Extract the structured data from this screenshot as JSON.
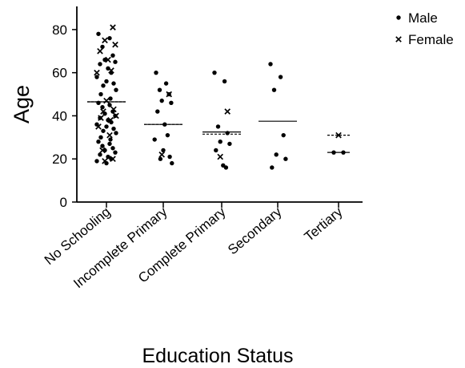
{
  "chart_data": {
    "type": "scatter",
    "title": "",
    "xlabel": "Education Status",
    "ylabel": "Age",
    "ylim": [
      0,
      90
    ],
    "yticks": [
      0,
      20,
      40,
      60,
      80
    ],
    "categories": [
      "No Schooling",
      "Incomplete Primary",
      "Complete Primary",
      "Secondary",
      "Tertiary"
    ],
    "legend": {
      "position": "top-right",
      "entries": [
        {
          "label": "Male",
          "marker": "dot"
        },
        {
          "label": "Female",
          "marker": "cross"
        }
      ]
    },
    "series": [
      {
        "name": "Male",
        "marker": "dot",
        "points": [
          {
            "x": "No Schooling",
            "y": 78
          },
          {
            "x": "No Schooling",
            "y": 76
          },
          {
            "x": "No Schooling",
            "y": 72
          },
          {
            "x": "No Schooling",
            "y": 68
          },
          {
            "x": "No Schooling",
            "y": 66
          },
          {
            "x": "No Schooling",
            "y": 65
          },
          {
            "x": "No Schooling",
            "y": 64
          },
          {
            "x": "No Schooling",
            "y": 62
          },
          {
            "x": "No Schooling",
            "y": 60
          },
          {
            "x": "No Schooling",
            "y": 58
          },
          {
            "x": "No Schooling",
            "y": 56
          },
          {
            "x": "No Schooling",
            "y": 55
          },
          {
            "x": "No Schooling",
            "y": 54
          },
          {
            "x": "No Schooling",
            "y": 52
          },
          {
            "x": "No Schooling",
            "y": 50
          },
          {
            "x": "No Schooling",
            "y": 48
          },
          {
            "x": "No Schooling",
            "y": 46
          },
          {
            "x": "No Schooling",
            "y": 45
          },
          {
            "x": "No Schooling",
            "y": 44
          },
          {
            "x": "No Schooling",
            "y": 42
          },
          {
            "x": "No Schooling",
            "y": 41
          },
          {
            "x": "No Schooling",
            "y": 40
          },
          {
            "x": "No Schooling",
            "y": 39
          },
          {
            "x": "No Schooling",
            "y": 38
          },
          {
            "x": "No Schooling",
            "y": 37
          },
          {
            "x": "No Schooling",
            "y": 36
          },
          {
            "x": "No Schooling",
            "y": 35
          },
          {
            "x": "No Schooling",
            "y": 34
          },
          {
            "x": "No Schooling",
            "y": 33
          },
          {
            "x": "No Schooling",
            "y": 32
          },
          {
            "x": "No Schooling",
            "y": 30
          },
          {
            "x": "No Schooling",
            "y": 29
          },
          {
            "x": "No Schooling",
            "y": 28
          },
          {
            "x": "No Schooling",
            "y": 27
          },
          {
            "x": "No Schooling",
            "y": 26
          },
          {
            "x": "No Schooling",
            "y": 25
          },
          {
            "x": "No Schooling",
            "y": 24
          },
          {
            "x": "No Schooling",
            "y": 23
          },
          {
            "x": "No Schooling",
            "y": 22
          },
          {
            "x": "No Schooling",
            "y": 21
          },
          {
            "x": "No Schooling",
            "y": 20
          },
          {
            "x": "No Schooling",
            "y": 19
          },
          {
            "x": "No Schooling",
            "y": 18
          },
          {
            "x": "Incomplete Primary",
            "y": 60
          },
          {
            "x": "Incomplete Primary",
            "y": 55
          },
          {
            "x": "Incomplete Primary",
            "y": 52
          },
          {
            "x": "Incomplete Primary",
            "y": 50
          },
          {
            "x": "Incomplete Primary",
            "y": 47
          },
          {
            "x": "Incomplete Primary",
            "y": 46
          },
          {
            "x": "Incomplete Primary",
            "y": 42
          },
          {
            "x": "Incomplete Primary",
            "y": 36
          },
          {
            "x": "Incomplete Primary",
            "y": 31
          },
          {
            "x": "Incomplete Primary",
            "y": 29
          },
          {
            "x": "Incomplete Primary",
            "y": 24
          },
          {
            "x": "Incomplete Primary",
            "y": 21
          },
          {
            "x": "Incomplete Primary",
            "y": 20
          },
          {
            "x": "Incomplete Primary",
            "y": 18
          },
          {
            "x": "Complete Primary",
            "y": 60
          },
          {
            "x": "Complete Primary",
            "y": 56
          },
          {
            "x": "Complete Primary",
            "y": 35
          },
          {
            "x": "Complete Primary",
            "y": 32
          },
          {
            "x": "Complete Primary",
            "y": 28
          },
          {
            "x": "Complete Primary",
            "y": 27
          },
          {
            "x": "Complete Primary",
            "y": 24
          },
          {
            "x": "Complete Primary",
            "y": 17
          },
          {
            "x": "Complete Primary",
            "y": 16
          },
          {
            "x": "Secondary",
            "y": 64
          },
          {
            "x": "Secondary",
            "y": 58
          },
          {
            "x": "Secondary",
            "y": 52
          },
          {
            "x": "Secondary",
            "y": 31
          },
          {
            "x": "Secondary",
            "y": 22
          },
          {
            "x": "Secondary",
            "y": 20
          },
          {
            "x": "Secondary",
            "y": 16
          },
          {
            "x": "Tertiary",
            "y": 23
          },
          {
            "x": "Tertiary",
            "y": 23
          }
        ]
      },
      {
        "name": "Female",
        "marker": "cross",
        "points": [
          {
            "x": "No Schooling",
            "y": 81
          },
          {
            "x": "No Schooling",
            "y": 75
          },
          {
            "x": "No Schooling",
            "y": 73
          },
          {
            "x": "No Schooling",
            "y": 70
          },
          {
            "x": "No Schooling",
            "y": 66
          },
          {
            "x": "No Schooling",
            "y": 61
          },
          {
            "x": "No Schooling",
            "y": 60
          },
          {
            "x": "No Schooling",
            "y": 47
          },
          {
            "x": "No Schooling",
            "y": 43
          },
          {
            "x": "No Schooling",
            "y": 42
          },
          {
            "x": "No Schooling",
            "y": 40
          },
          {
            "x": "No Schooling",
            "y": 39
          },
          {
            "x": "No Schooling",
            "y": 38
          },
          {
            "x": "No Schooling",
            "y": 35
          },
          {
            "x": "No Schooling",
            "y": 31
          },
          {
            "x": "No Schooling",
            "y": 24
          },
          {
            "x": "No Schooling",
            "y": 20
          },
          {
            "x": "No Schooling",
            "y": 19
          },
          {
            "x": "Incomplete Primary",
            "y": 50
          },
          {
            "x": "Incomplete Primary",
            "y": 22
          },
          {
            "x": "Complete Primary",
            "y": 42
          },
          {
            "x": "Complete Primary",
            "y": 21
          },
          {
            "x": "Tertiary",
            "y": 31
          }
        ]
      }
    ],
    "mean_lines": [
      {
        "category": "No Schooling",
        "series": "Male",
        "value": 46.5,
        "style": "solid"
      },
      {
        "category": "No Schooling",
        "series": "Female",
        "value": 46.5,
        "style": "dashed"
      },
      {
        "category": "Incomplete Primary",
        "series": "Male",
        "value": 36,
        "style": "solid"
      },
      {
        "category": "Incomplete Primary",
        "series": "Female",
        "value": 36,
        "style": "dashed"
      },
      {
        "category": "Complete Primary",
        "series": "Male",
        "value": 32.5,
        "style": "solid"
      },
      {
        "category": "Complete Primary",
        "series": "Female",
        "value": 31.5,
        "style": "dashed"
      },
      {
        "category": "Secondary",
        "series": "Male",
        "value": 37.5,
        "style": "solid"
      },
      {
        "category": "Tertiary",
        "series": "Male",
        "value": 23,
        "style": "solid"
      },
      {
        "category": "Tertiary",
        "series": "Female",
        "value": 31,
        "style": "dashed"
      }
    ]
  }
}
